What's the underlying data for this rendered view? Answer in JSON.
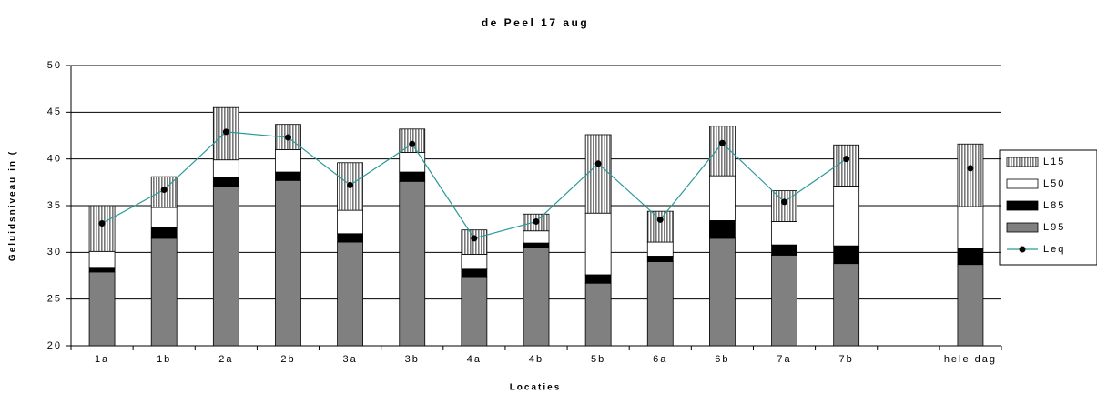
{
  "chart_data": {
    "type": "bar",
    "title": "de Peel 17 aug",
    "x_label": "Locaties",
    "y_label": "Geluidsniveau in (",
    "categories": [
      "1a",
      "1b",
      "2a",
      "2b",
      "3a",
      "3b",
      "4a",
      "4b",
      "5b",
      "6a",
      "6b",
      "7a",
      "7b",
      null,
      "hele dag"
    ],
    "series": [
      {
        "name": "L15",
        "color": "#c8c8c8",
        "values": [
          4.9,
          3.3,
          5.6,
          2.7,
          5.1,
          2.5,
          2.6,
          1.8,
          8.4,
          3.3,
          5.3,
          3.3,
          4.4,
          null,
          6.7
        ]
      },
      {
        "name": "L50",
        "color": "#ffffff",
        "values": [
          1.7,
          2.1,
          1.9,
          2.4,
          2.5,
          2.1,
          1.6,
          1.3,
          6.6,
          1.5,
          4.8,
          2.5,
          6.4,
          null,
          4.5
        ]
      },
      {
        "name": "L85",
        "color": "#000000",
        "values": [
          0.5,
          1.2,
          1.0,
          0.9,
          0.9,
          1.0,
          0.8,
          0.5,
          0.9,
          0.6,
          1.9,
          1.1,
          1.9,
          null,
          1.7
        ]
      },
      {
        "name": "L95",
        "color": "#808080",
        "values": [
          27.9,
          31.5,
          37.0,
          37.7,
          31.1,
          37.6,
          27.4,
          30.5,
          26.7,
          29.0,
          31.5,
          29.7,
          28.8,
          null,
          28.7
        ]
      },
      {
        "name": "Leq",
        "type": "line",
        "color": "#2a9a9a",
        "values": [
          33.1,
          36.7,
          42.9,
          42.3,
          37.2,
          41.6,
          31.5,
          33.3,
          39.5,
          33.5,
          41.7,
          35.4,
          40.0,
          null,
          39.0
        ]
      }
    ],
    "ylim": [
      20,
      50
    ],
    "yticks": [
      20,
      25,
      30,
      35,
      40,
      45,
      50
    ],
    "grid": true
  }
}
